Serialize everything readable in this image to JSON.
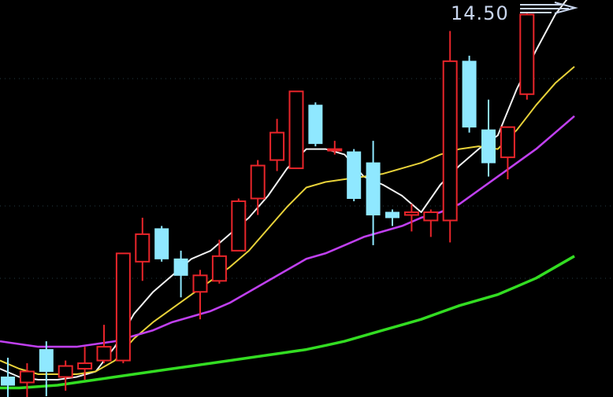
{
  "chart_data": {
    "type": "candlestick",
    "annotation": "14.50",
    "ylim": [
      1.0,
      14.8
    ],
    "candles": [
      {
        "o": 1.3,
        "h": 2.0,
        "l": 0.4,
        "c": 1.0
      },
      {
        "o": 1.1,
        "h": 1.8,
        "l": 0.5,
        "c": 1.5
      },
      {
        "o": 2.3,
        "h": 2.6,
        "l": 0.6,
        "c": 1.5
      },
      {
        "o": 1.3,
        "h": 1.9,
        "l": 0.8,
        "c": 1.7
      },
      {
        "o": 1.6,
        "h": 2.4,
        "l": 1.2,
        "c": 1.8
      },
      {
        "o": 1.9,
        "h": 3.2,
        "l": 1.8,
        "c": 2.4
      },
      {
        "o": 1.9,
        "h": 5.8,
        "l": 1.8,
        "c": 5.8
      },
      {
        "o": 5.5,
        "h": 7.1,
        "l": 4.8,
        "c": 6.5
      },
      {
        "o": 6.7,
        "h": 6.8,
        "l": 5.5,
        "c": 5.6
      },
      {
        "o": 5.6,
        "h": 5.9,
        "l": 4.2,
        "c": 5.0
      },
      {
        "o": 4.4,
        "h": 5.2,
        "l": 3.4,
        "c": 5.0
      },
      {
        "o": 4.8,
        "h": 6.3,
        "l": 4.7,
        "c": 5.7
      },
      {
        "o": 5.9,
        "h": 7.8,
        "l": 5.9,
        "c": 7.7
      },
      {
        "o": 7.8,
        "h": 9.2,
        "l": 7.2,
        "c": 9.0
      },
      {
        "o": 9.2,
        "h": 10.7,
        "l": 8.8,
        "c": 10.2
      },
      {
        "o": 8.9,
        "h": 11.7,
        "l": 8.9,
        "c": 11.7
      },
      {
        "o": 11.2,
        "h": 11.3,
        "l": 9.7,
        "c": 9.8
      },
      {
        "o": 9.6,
        "h": 9.9,
        "l": 9.4,
        "c": 9.6
      },
      {
        "o": 9.5,
        "h": 9.6,
        "l": 7.7,
        "c": 7.8
      },
      {
        "o": 9.1,
        "h": 9.9,
        "l": 6.1,
        "c": 7.2
      },
      {
        "o": 7.3,
        "h": 7.4,
        "l": 6.8,
        "c": 7.1
      },
      {
        "o": 7.2,
        "h": 7.6,
        "l": 6.6,
        "c": 7.3
      },
      {
        "o": 7.0,
        "h": 7.4,
        "l": 6.4,
        "c": 7.3
      },
      {
        "o": 7.0,
        "h": 13.9,
        "l": 6.2,
        "c": 12.8
      },
      {
        "o": 12.8,
        "h": 13.0,
        "l": 10.2,
        "c": 10.4
      },
      {
        "o": 10.3,
        "h": 11.4,
        "l": 8.6,
        "c": 9.1
      },
      {
        "o": 9.3,
        "h": 10.4,
        "l": 8.5,
        "c": 10.4
      },
      {
        "o": 11.6,
        "h": 14.6,
        "l": 11.4,
        "c": 14.5
      }
    ],
    "series": [
      {
        "color": "#f2f2f2",
        "values": [
          1.6,
          1.3,
          1.2,
          1.2,
          1.3,
          1.5,
          2.4,
          3.6,
          4.4,
          5.0,
          5.6,
          5.9,
          6.5,
          7.1,
          7.9,
          8.9,
          9.6,
          9.6,
          9.4,
          8.6,
          8.3,
          7.9,
          7.3,
          8.3,
          9.0,
          9.6,
          10.1,
          11.8,
          13.2,
          14.5,
          15.4
        ]
      },
      {
        "color": "#e8d23a",
        "values": [
          1.9,
          1.6,
          1.4,
          1.4,
          1.4,
          1.5,
          1.9,
          2.7,
          3.3,
          3.8,
          4.3,
          4.8,
          5.3,
          5.9,
          6.7,
          7.5,
          8.2,
          8.4,
          8.5,
          8.6,
          8.7,
          8.9,
          9.1,
          9.4,
          9.6,
          9.7,
          9.6,
          10.3,
          11.2,
          12.0,
          12.6
        ]
      },
      {
        "color": "#c040f0",
        "values": [
          2.6,
          2.5,
          2.4,
          2.4,
          2.4,
          2.5,
          2.6,
          2.8,
          3.0,
          3.3,
          3.5,
          3.7,
          4.0,
          4.4,
          4.8,
          5.2,
          5.6,
          5.8,
          6.1,
          6.4,
          6.6,
          6.8,
          7.1,
          7.3,
          7.6,
          8.1,
          8.6,
          9.1,
          9.6,
          10.2,
          10.8
        ]
      },
      {
        "color": "#33dd22",
        "values": [
          0.9,
          0.9,
          0.95,
          1.0,
          1.1,
          1.2,
          1.3,
          1.4,
          1.5,
          1.6,
          1.7,
          1.8,
          1.9,
          2.0,
          2.1,
          2.2,
          2.3,
          2.45,
          2.6,
          2.8,
          3.0,
          3.2,
          3.4,
          3.65,
          3.9,
          4.1,
          4.3,
          4.6,
          4.9,
          5.3,
          5.7
        ]
      }
    ],
    "colors": {
      "up": "#e8252a",
      "down": "#8fe8ff",
      "background": "#000000",
      "gridline": "#4d7a8a"
    }
  }
}
